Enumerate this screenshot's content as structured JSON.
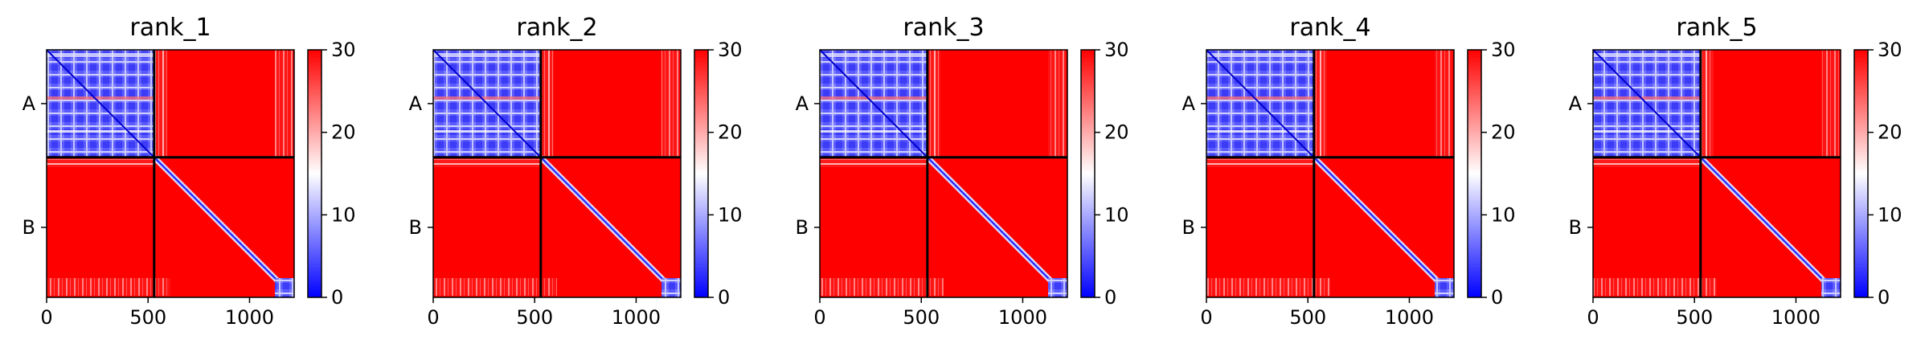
{
  "chart_data": [
    {
      "type": "heatmap",
      "title": "rank_1",
      "x_ticks": [
        "0",
        "500",
        "1000"
      ],
      "x_tick_values": [
        0,
        500,
        1000
      ],
      "xlim": [
        0,
        1220
      ],
      "y_tick_labels": [
        "A",
        "B"
      ],
      "chain_lengths": {
        "A": 530,
        "B": 690
      },
      "divider_at": 530,
      "colorbar": {
        "ticks": [
          "0",
          "10",
          "20",
          "30"
        ],
        "tick_values": [
          0,
          10,
          20,
          30
        ],
        "range": [
          0,
          30
        ],
        "colors": [
          "#0000ff",
          "#ffffff",
          "#ff0000"
        ]
      }
    },
    {
      "type": "heatmap",
      "title": "rank_2",
      "x_ticks": [
        "0",
        "500",
        "1000"
      ],
      "x_tick_values": [
        0,
        500,
        1000
      ],
      "xlim": [
        0,
        1220
      ],
      "y_tick_labels": [
        "A",
        "B"
      ],
      "chain_lengths": {
        "A": 530,
        "B": 690
      },
      "divider_at": 530,
      "colorbar": {
        "ticks": [
          "0",
          "10",
          "20",
          "30"
        ],
        "tick_values": [
          0,
          10,
          20,
          30
        ],
        "range": [
          0,
          30
        ],
        "colors": [
          "#0000ff",
          "#ffffff",
          "#ff0000"
        ]
      }
    },
    {
      "type": "heatmap",
      "title": "rank_3",
      "x_ticks": [
        "0",
        "500",
        "1000"
      ],
      "x_tick_values": [
        0,
        500,
        1000
      ],
      "xlim": [
        0,
        1220
      ],
      "y_tick_labels": [
        "A",
        "B"
      ],
      "chain_lengths": {
        "A": 530,
        "B": 690
      },
      "divider_at": 530,
      "colorbar": {
        "ticks": [
          "0",
          "10",
          "20",
          "30"
        ],
        "tick_values": [
          0,
          10,
          20,
          30
        ],
        "range": [
          0,
          30
        ],
        "colors": [
          "#0000ff",
          "#ffffff",
          "#ff0000"
        ]
      }
    },
    {
      "type": "heatmap",
      "title": "rank_4",
      "x_ticks": [
        "0",
        "500",
        "1000"
      ],
      "x_tick_values": [
        0,
        500,
        1000
      ],
      "xlim": [
        0,
        1220
      ],
      "y_tick_labels": [
        "A",
        "B"
      ],
      "chain_lengths": {
        "A": 530,
        "B": 690
      },
      "divider_at": 530,
      "colorbar": {
        "ticks": [
          "0",
          "10",
          "20",
          "30"
        ],
        "tick_values": [
          0,
          10,
          20,
          30
        ],
        "range": [
          0,
          30
        ],
        "colors": [
          "#0000ff",
          "#ffffff",
          "#ff0000"
        ]
      }
    },
    {
      "type": "heatmap",
      "title": "rank_5",
      "x_ticks": [
        "0",
        "500",
        "1000"
      ],
      "x_tick_values": [
        0,
        500,
        1000
      ],
      "xlim": [
        0,
        1220
      ],
      "y_tick_labels": [
        "A",
        "B"
      ],
      "chain_lengths": {
        "A": 530,
        "B": 690
      },
      "divider_at": 530,
      "colorbar": {
        "ticks": [
          "0",
          "10",
          "20",
          "30"
        ],
        "tick_values": [
          0,
          10,
          20,
          30
        ],
        "range": [
          0,
          30
        ],
        "colors": [
          "#0000ff",
          "#ffffff",
          "#ff0000"
        ]
      }
    }
  ]
}
